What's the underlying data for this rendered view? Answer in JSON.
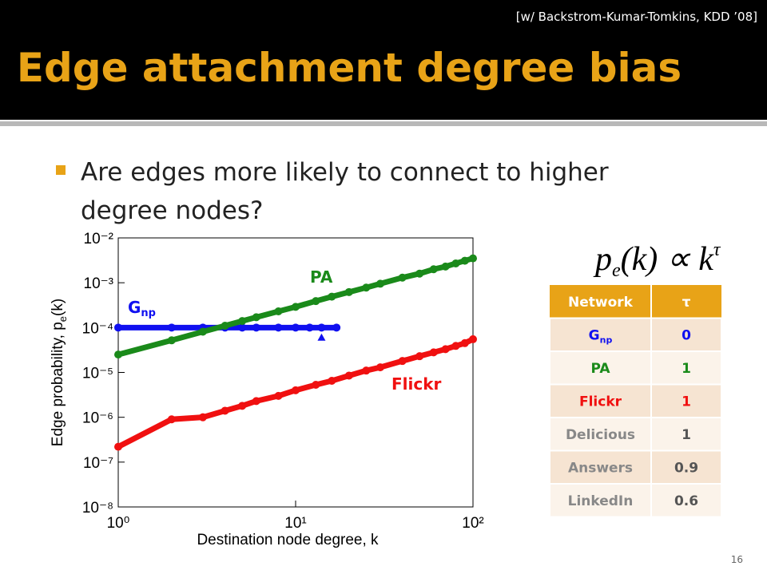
{
  "header": {
    "citation": "[w/ Backstrom-Kumar-Tomkins, KDD ’08]",
    "title": "Edge attachment degree bias"
  },
  "bullet": {
    "line1": "Are edges more likely to connect to higher",
    "line2": "degree nodes?"
  },
  "formula": {
    "p": "p",
    "sub": "e",
    "mid": "(k) ∝ k",
    "sup": "τ"
  },
  "chart_data": {
    "type": "scatter",
    "log_x": true,
    "log_y": true,
    "xlabel": "Destination node degree, k",
    "ylabel": {
      "text": "Edge probability, p",
      "sub": "e",
      "tail": "(k)"
    },
    "xlim": [
      1,
      100
    ],
    "ylim": [
      1e-08,
      0.01
    ],
    "xticks": [
      {
        "value": 1,
        "label": "10⁰"
      },
      {
        "value": 10,
        "label": "10¹"
      },
      {
        "value": 100,
        "label": "10²"
      }
    ],
    "yticks": [
      {
        "value": 1e-08,
        "label": "10⁻⁸"
      },
      {
        "value": 1e-07,
        "label": "10⁻⁷"
      },
      {
        "value": 1e-06,
        "label": "10⁻⁶"
      },
      {
        "value": 1e-05,
        "label": "10⁻⁵"
      },
      {
        "value": 0.0001,
        "label": "10⁻⁴"
      },
      {
        "value": 0.001,
        "label": "10⁻³"
      },
      {
        "value": 0.01,
        "label": "10⁻²"
      }
    ],
    "series": [
      {
        "name": "G",
        "subscript": "np",
        "color": "#1010f0",
        "x": [
          1,
          2,
          3,
          4,
          5,
          6,
          8,
          10,
          12,
          14,
          17
        ],
        "values": [
          0.0001,
          0.0001,
          0.0001,
          0.0001,
          0.0001,
          0.0001,
          0.0001,
          0.0001,
          0.0001,
          0.0001,
          0.0001
        ],
        "outlier": {
          "x": 14,
          "value": 6e-05
        }
      },
      {
        "name": "PA",
        "color": "#1a8a1a",
        "x": [
          1,
          2,
          3,
          4,
          5,
          6,
          8,
          10,
          13,
          16,
          20,
          25,
          30,
          40,
          50,
          60,
          70,
          80,
          90,
          100
        ],
        "values": [
          2.5e-05,
          5.2e-05,
          8.1e-05,
          0.00011,
          0.00014,
          0.00017,
          0.00023,
          0.00029,
          0.00039,
          0.00049,
          0.00062,
          0.00078,
          0.00095,
          0.0013,
          0.0016,
          0.002,
          0.0023,
          0.0027,
          0.0031,
          0.0035
        ]
      },
      {
        "name": "Flickr",
        "color": "#f01010",
        "x": [
          1,
          2,
          3,
          4,
          5,
          6,
          8,
          10,
          13,
          16,
          20,
          25,
          30,
          40,
          50,
          60,
          70,
          80,
          90,
          100
        ],
        "values": [
          2.2e-07,
          9e-07,
          1e-06,
          1.4e-06,
          1.8e-06,
          2.3e-06,
          3e-06,
          4e-06,
          5.3e-06,
          6.5e-06,
          8.5e-06,
          1.1e-05,
          1.3e-05,
          1.8e-05,
          2.3e-05,
          2.8e-05,
          3.3e-05,
          3.9e-05,
          4.5e-05,
          5.5e-05
        ]
      }
    ]
  },
  "table": {
    "header": [
      "Network",
      "τ"
    ],
    "rows": [
      {
        "network": "G",
        "network_sub": "np",
        "tau": 0,
        "color": "#1010f0"
      },
      {
        "network": "PA",
        "tau": 1,
        "color": "#1a8a1a"
      },
      {
        "network": "Flickr",
        "tau": 1,
        "color": "#f01010"
      },
      {
        "network": "Delicious",
        "tau": 1,
        "color": "#888888"
      },
      {
        "network": "Answers",
        "tau": 0.9,
        "color": "#888888"
      },
      {
        "network": "LinkedIn",
        "tau": 0.6,
        "color": "#888888"
      }
    ]
  },
  "page_number": "16"
}
